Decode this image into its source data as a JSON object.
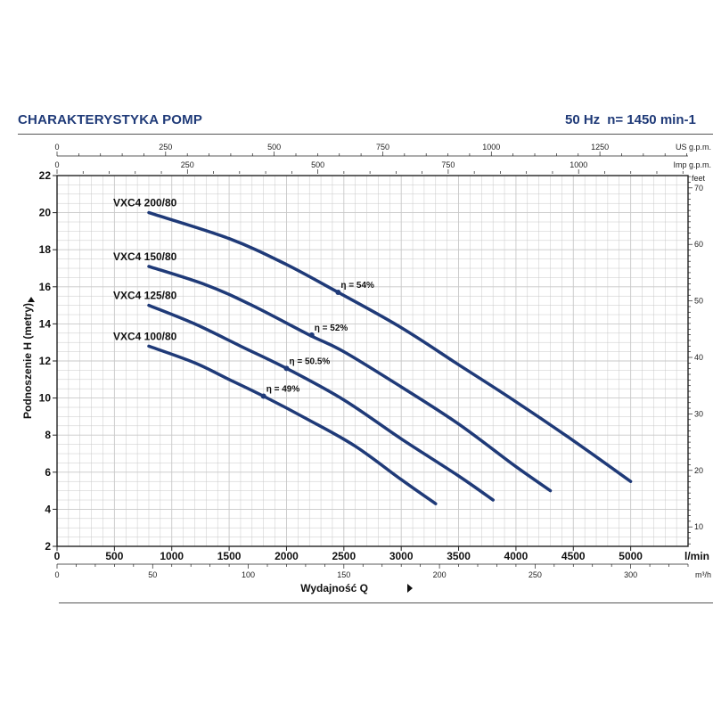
{
  "header": {
    "title": "CHARAKTERYSTYKA POMP",
    "frequency": "50 Hz",
    "speed": "n= 1450 min-1"
  },
  "colors": {
    "curve": "#1f3a78",
    "title": "#1f3a78",
    "grid": "#c8c8c8",
    "axis": "#222222"
  },
  "chart_data": {
    "type": "line",
    "title": "",
    "xlabel": "Wydajność Q",
    "ylabel": "Podnoszenie H (metry)",
    "xlim": [
      0,
      5500
    ],
    "ylim": [
      2,
      22
    ],
    "x_unit": "l/min",
    "x_ticks": [
      0,
      500,
      1000,
      1500,
      2000,
      2500,
      3000,
      3500,
      4000,
      4500,
      5000
    ],
    "y_ticks": [
      2,
      4,
      6,
      8,
      10,
      12,
      14,
      16,
      18,
      20,
      22
    ],
    "grid": true,
    "secondary_axes": {
      "m3h": {
        "unit": "m³/h",
        "ticks": [
          0,
          50,
          100,
          150,
          200,
          250,
          300
        ]
      },
      "us_gpm": {
        "unit": "US g.p.m.",
        "ticks": [
          0,
          250,
          500,
          750,
          1000,
          1250
        ]
      },
      "imp_gpm": {
        "unit": "Imp g.p.m.",
        "ticks": [
          0,
          250,
          500,
          750,
          1000
        ]
      },
      "feet": {
        "unit": "feet",
        "ticks": [
          10,
          20,
          30,
          40,
          50,
          60,
          70
        ]
      }
    },
    "series": [
      {
        "name": "VXC4 200/80",
        "x": [
          800,
          1500,
          2000,
          2450,
          3000,
          3500,
          4000,
          4500,
          5000
        ],
        "y": [
          20.0,
          18.6,
          17.2,
          15.7,
          13.8,
          11.8,
          9.8,
          7.7,
          5.5
        ]
      },
      {
        "name": "VXC4 150/80",
        "x": [
          800,
          1300,
          1700,
          2200,
          2500,
          3000,
          3500,
          4000,
          4300
        ],
        "y": [
          17.1,
          16.1,
          15.0,
          13.4,
          12.5,
          10.6,
          8.6,
          6.3,
          5.0
        ]
      },
      {
        "name": "VXC4 125/80",
        "x": [
          800,
          1200,
          1600,
          2000,
          2500,
          3000,
          3500,
          3800
        ],
        "y": [
          15.0,
          14.0,
          12.8,
          11.6,
          9.9,
          7.8,
          5.8,
          4.5
        ]
      },
      {
        "name": "VXC4 100/80",
        "x": [
          800,
          1200,
          1500,
          1800,
          2200,
          2600,
          3000,
          3300
        ],
        "y": [
          12.8,
          11.9,
          11.0,
          10.1,
          8.8,
          7.4,
          5.6,
          4.3
        ]
      }
    ],
    "annotations": [
      {
        "text": "η = 54%",
        "x": 2450,
        "y": 15.7
      },
      {
        "text": "η = 52%",
        "x": 2220,
        "y": 13.4
      },
      {
        "text": "η = 50.5%",
        "x": 2000,
        "y": 11.6
      },
      {
        "text": "η = 49%",
        "x": 1800,
        "y": 10.1
      }
    ]
  }
}
